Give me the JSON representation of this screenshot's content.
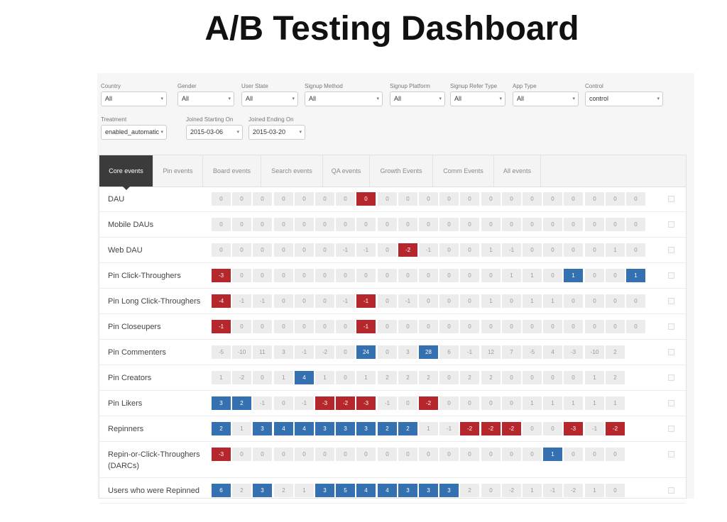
{
  "title": "A/B Testing Dashboard",
  "filters": [
    {
      "label": "Country",
      "value": "All"
    },
    {
      "label": "Gender",
      "value": "All"
    },
    {
      "label": "User State",
      "value": "All"
    },
    {
      "label": "Signup Method",
      "value": "All"
    },
    {
      "label": "Signup Platform",
      "value": "All"
    },
    {
      "label": "Signup Refer Type",
      "value": "All"
    },
    {
      "label": "App Type",
      "value": "All"
    },
    {
      "label": "Control",
      "value": "control"
    },
    {
      "label": "Treatment",
      "value": "enabled_automatic"
    },
    {
      "label": "Joined Starting On",
      "value": "2015-03-06"
    },
    {
      "label": "Joined Ending On",
      "value": "2015-03-20"
    }
  ],
  "tabs": [
    {
      "label": "Core events",
      "active": true
    },
    {
      "label": "Pin events",
      "active": false
    },
    {
      "label": "Board events",
      "active": false
    },
    {
      "label": "Search events",
      "active": false
    },
    {
      "label": "QA events",
      "active": false
    },
    {
      "label": "Growth Events",
      "active": false
    },
    {
      "label": "Comm Events",
      "active": false
    },
    {
      "label": "All events",
      "active": false
    }
  ],
  "colors": {
    "positive": "#3571b0",
    "negative": "#b5272d",
    "neutral": "#ececec"
  },
  "rows": [
    {
      "metric": "DAU",
      "values": [
        "0",
        "0",
        "0",
        "0",
        "0",
        "0",
        "0",
        "0",
        "0",
        "0",
        "0",
        "0",
        "0",
        "0",
        "0",
        "0",
        "0",
        "0",
        "0",
        "0",
        "0"
      ],
      "status": [
        "n",
        "n",
        "n",
        "n",
        "n",
        "n",
        "n",
        "-",
        "n",
        "n",
        "n",
        "n",
        "n",
        "n",
        "n",
        "n",
        "n",
        "n",
        "n",
        "n",
        "n"
      ]
    },
    {
      "metric": "Mobile DAUs",
      "values": [
        "0",
        "0",
        "0",
        "0",
        "0",
        "0",
        "0",
        "0",
        "0",
        "0",
        "0",
        "0",
        "0",
        "0",
        "0",
        "0",
        "0",
        "0",
        "0",
        "0",
        "0"
      ],
      "status": [
        "n",
        "n",
        "n",
        "n",
        "n",
        "n",
        "n",
        "n",
        "n",
        "n",
        "n",
        "n",
        "n",
        "n",
        "n",
        "n",
        "n",
        "n",
        "n",
        "n",
        "n"
      ]
    },
    {
      "metric": "Web DAU",
      "values": [
        "0",
        "0",
        "0",
        "0",
        "0",
        "0",
        "-1",
        "-1",
        "0",
        "-2",
        "-1",
        "0",
        "0",
        "1",
        "-1",
        "0",
        "0",
        "0",
        "0",
        "1",
        "0"
      ],
      "status": [
        "n",
        "n",
        "n",
        "n",
        "n",
        "n",
        "n",
        "n",
        "n",
        "-",
        "n",
        "n",
        "n",
        "n",
        "n",
        "n",
        "n",
        "n",
        "n",
        "n",
        "n"
      ]
    },
    {
      "metric": "Pin Click-Throughers",
      "values": [
        "-3",
        "0",
        "0",
        "0",
        "0",
        "0",
        "0",
        "0",
        "0",
        "0",
        "0",
        "0",
        "0",
        "0",
        "1",
        "1",
        "0",
        "1",
        "0",
        "0",
        "1"
      ],
      "status": [
        "-",
        "n",
        "n",
        "n",
        "n",
        "n",
        "n",
        "n",
        "n",
        "n",
        "n",
        "n",
        "n",
        "n",
        "n",
        "n",
        "n",
        "+",
        "n",
        "n",
        "+"
      ]
    },
    {
      "metric": "Pin Long Click-Throughers",
      "values": [
        "-4",
        "-1",
        "-1",
        "0",
        "0",
        "0",
        "-1",
        "-1",
        "0",
        "-1",
        "0",
        "0",
        "0",
        "1",
        "0",
        "1",
        "1",
        "0",
        "0",
        "0",
        "0"
      ],
      "status": [
        "-",
        "n",
        "n",
        "n",
        "n",
        "n",
        "n",
        "-",
        "n",
        "n",
        "n",
        "n",
        "n",
        "n",
        "n",
        "n",
        "n",
        "n",
        "n",
        "n",
        "n"
      ]
    },
    {
      "metric": "Pin Closeupers",
      "values": [
        "-1",
        "0",
        "0",
        "0",
        "0",
        "0",
        "0",
        "-1",
        "0",
        "0",
        "0",
        "0",
        "0",
        "0",
        "0",
        "0",
        "0",
        "0",
        "0",
        "0",
        "0"
      ],
      "status": [
        "-",
        "n",
        "n",
        "n",
        "n",
        "n",
        "n",
        "-",
        "n",
        "n",
        "n",
        "n",
        "n",
        "n",
        "n",
        "n",
        "n",
        "n",
        "n",
        "n",
        "n"
      ]
    },
    {
      "metric": "Pin Commenters",
      "values": [
        "-5",
        "-10",
        "11",
        "3",
        "-1",
        "-2",
        "0",
        "24",
        "0",
        "3",
        "28",
        "6",
        "-1",
        "12",
        "7",
        "-5",
        "4",
        "-3",
        "-10",
        "2"
      ],
      "status": [
        "n",
        "n",
        "n",
        "n",
        "n",
        "n",
        "n",
        "+",
        "n",
        "n",
        "+",
        "n",
        "n",
        "n",
        "n",
        "n",
        "n",
        "n",
        "n",
        "n"
      ]
    },
    {
      "metric": "Pin Creators",
      "values": [
        "1",
        "-2",
        "0",
        "1",
        "4",
        "1",
        "0",
        "1",
        "2",
        "2",
        "2",
        "0",
        "2",
        "2",
        "0",
        "0",
        "0",
        "0",
        "1",
        "2"
      ],
      "status": [
        "n",
        "n",
        "n",
        "n",
        "+",
        "n",
        "n",
        "n",
        "n",
        "n",
        "n",
        "n",
        "n",
        "n",
        "n",
        "n",
        "n",
        "n",
        "n",
        "n"
      ]
    },
    {
      "metric": "Pin Likers",
      "values": [
        "3",
        "2",
        "-1",
        "0",
        "-1",
        "-3",
        "-2",
        "-3",
        "-1",
        "0",
        "-2",
        "0",
        "0",
        "0",
        "0",
        "1",
        "1",
        "1",
        "1",
        "1"
      ],
      "status": [
        "+",
        "+",
        "n",
        "n",
        "n",
        "-",
        "-",
        "-",
        "n",
        "n",
        "-",
        "n",
        "n",
        "n",
        "n",
        "n",
        "n",
        "n",
        "n",
        "n"
      ]
    },
    {
      "metric": "Repinners",
      "values": [
        "2",
        "1",
        "3",
        "4",
        "4",
        "3",
        "3",
        "3",
        "2",
        "2",
        "1",
        "-1",
        "-2",
        "-2",
        "-2",
        "0",
        "0",
        "-3",
        "-1",
        "-2"
      ],
      "status": [
        "+",
        "n",
        "+",
        "+",
        "+",
        "+",
        "+",
        "+",
        "+",
        "+",
        "n",
        "n",
        "-",
        "-",
        "-",
        "n",
        "n",
        "-",
        "n",
        "-"
      ]
    },
    {
      "metric": "Repin-or-Click-Throughers (DARCs)",
      "values": [
        "-3",
        "0",
        "0",
        "0",
        "0",
        "0",
        "0",
        "0",
        "0",
        "0",
        "0",
        "0",
        "0",
        "0",
        "0",
        "0",
        "1",
        "0",
        "0",
        "0"
      ],
      "status": [
        "-",
        "n",
        "n",
        "n",
        "n",
        "n",
        "n",
        "n",
        "n",
        "n",
        "n",
        "n",
        "n",
        "n",
        "n",
        "n",
        "+",
        "n",
        "n",
        "n"
      ]
    },
    {
      "metric": "Users who were Repinned",
      "values": [
        "6",
        "2",
        "3",
        "2",
        "1",
        "3",
        "5",
        "4",
        "4",
        "3",
        "3",
        "3",
        "2",
        "0",
        "-2",
        "1",
        "-1",
        "-2",
        "1",
        "0"
      ],
      "status": [
        "+",
        "n",
        "+",
        "n",
        "n",
        "+",
        "+",
        "+",
        "+",
        "+",
        "+",
        "+",
        "n",
        "n",
        "n",
        "n",
        "n",
        "n",
        "n",
        "n"
      ]
    }
  ]
}
